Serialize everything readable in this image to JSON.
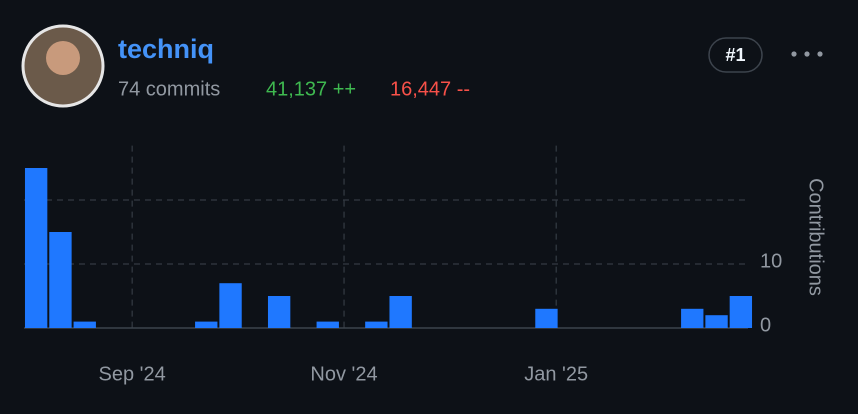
{
  "header": {
    "user": "techniq",
    "commits": "74 commits",
    "additions": "41,137 ++",
    "deletions": "16,447 --",
    "rank": "#1"
  },
  "chart_data": {
    "type": "bar",
    "y_label": "Contributions",
    "categories": [
      null,
      null,
      null,
      null,
      null,
      null,
      null,
      null,
      null,
      null,
      null,
      null,
      null,
      null,
      null,
      null,
      null,
      null,
      null,
      null,
      null,
      null,
      null,
      null,
      null,
      null,
      null,
      null,
      null,
      null
    ],
    "values": [
      25,
      15,
      1,
      0,
      0,
      0,
      0,
      1,
      7,
      0,
      5,
      0,
      1,
      0,
      1,
      5,
      0,
      0,
      0,
      0,
      0,
      3,
      0,
      0,
      0,
      0,
      0,
      3,
      2,
      5
    ],
    "color": "#1f78ff",
    "ylim": [
      0,
      28.5
    ],
    "yticks": [
      0,
      10
    ],
    "ygrid": [
      10,
      20
    ],
    "xticks": [
      {
        "value": 3.95,
        "label": "Sep '24"
      },
      {
        "value": 12.67,
        "label": "Nov '24"
      },
      {
        "value": 21.4,
        "label": "Jan '25"
      }
    ],
    "grid": true
  }
}
